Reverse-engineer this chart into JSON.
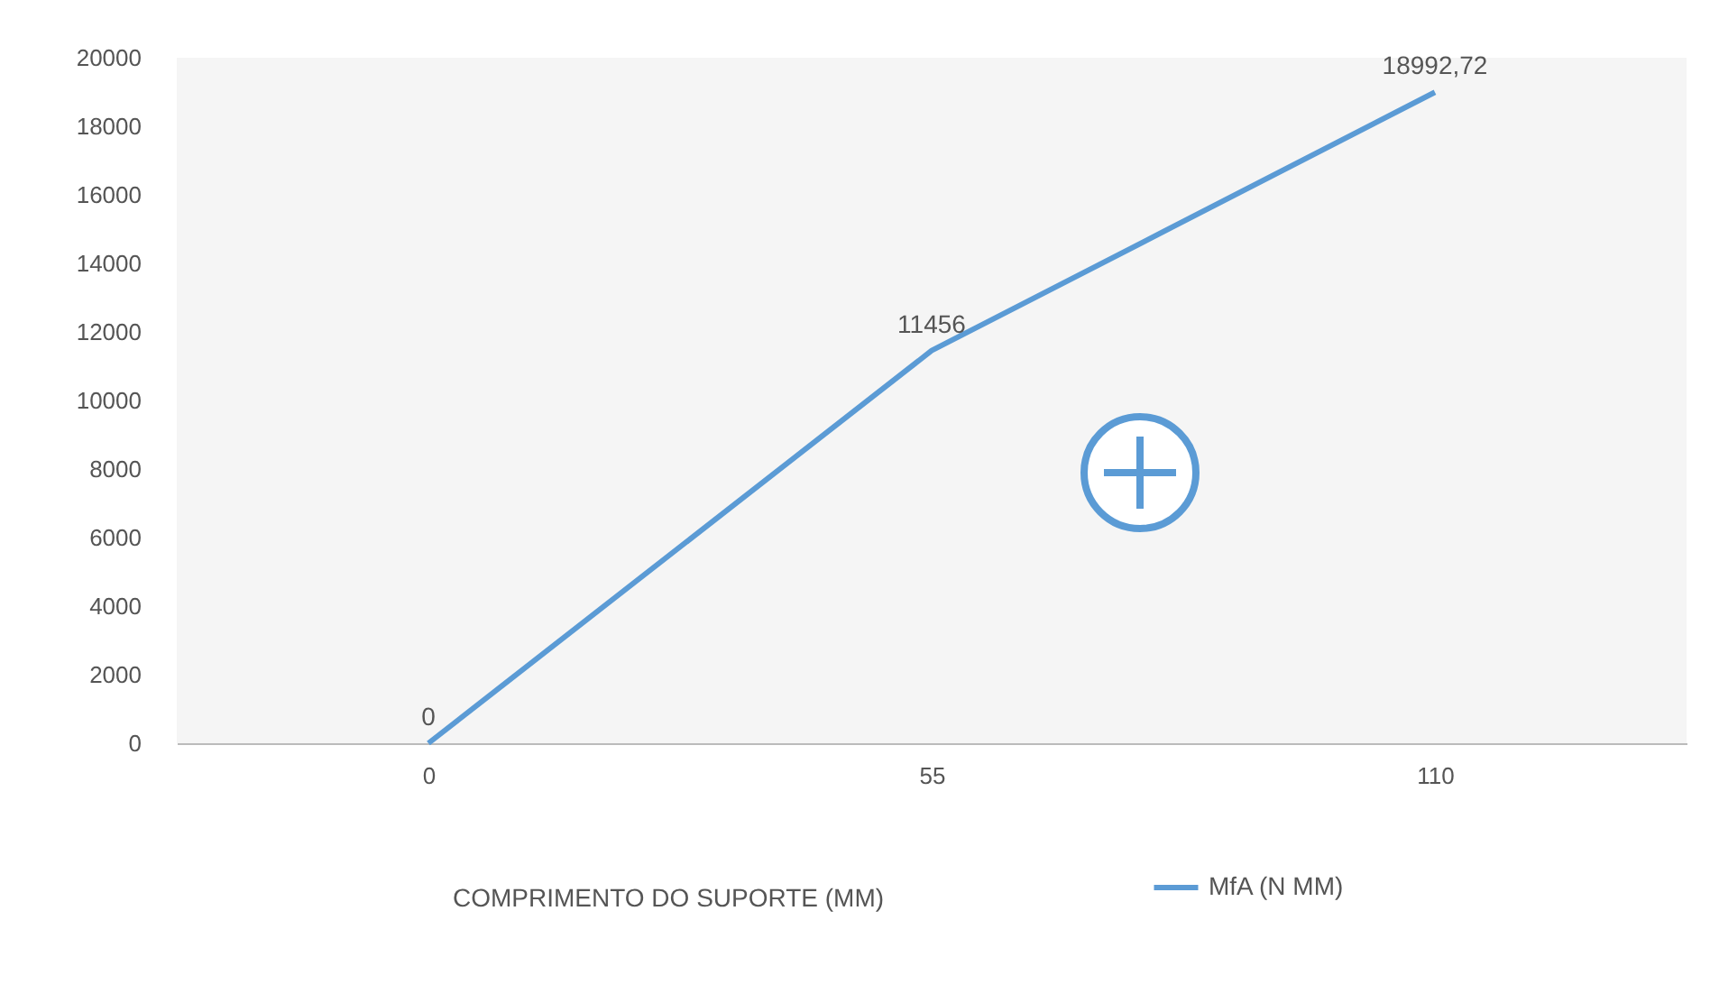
{
  "chart_data": {
    "type": "line",
    "xlabel": "COMPRIMENTO DO SUPORTE (MM)",
    "categories": [
      "0",
      "55",
      "110"
    ],
    "series": [
      {
        "name": "MfA (N MM)",
        "color": "#5b9bd5",
        "values": [
          0,
          11456,
          18992.72
        ],
        "value_labels": [
          "0",
          "11456",
          "18992,72"
        ]
      }
    ],
    "ylim": [
      0,
      20000
    ],
    "yticks": [
      0,
      2000,
      4000,
      6000,
      8000,
      10000,
      12000,
      14000,
      16000,
      18000,
      20000
    ],
    "grid": false,
    "legend": "bottom",
    "marker": "none",
    "line_style": "solid"
  }
}
